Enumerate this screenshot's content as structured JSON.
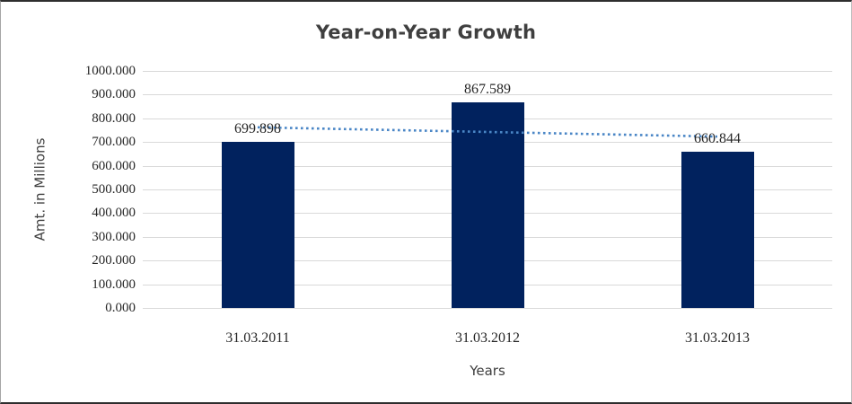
{
  "chart_data": {
    "type": "bar",
    "title": "Year-on-Year Growth",
    "xlabel": "Years",
    "ylabel": "Amt. in Millions",
    "categories": [
      "31.03.2011",
      "31.03.2012",
      "31.03.2013"
    ],
    "values": [
      699.898,
      867.589,
      660.844
    ],
    "data_labels": [
      "699.898",
      "867.589",
      "660.844"
    ],
    "ylim": [
      0,
      1000
    ],
    "ytick_step": 100,
    "ytick_labels": [
      "1000.000",
      "900.000",
      "800.000",
      "700.000",
      "600.000",
      "500.000",
      "400.000",
      "300.000",
      "200.000",
      "100.000",
      "0.000"
    ],
    "grid": "horizontal",
    "legend": "none",
    "trendline": {
      "kind": "linear",
      "line_style": "dotted",
      "start_value": 762,
      "end_value": 723
    },
    "colors": {
      "bar": "#01225e",
      "trendline": "#4a86c6",
      "gridline": "#d9d9d9",
      "title_text": "#3f3f3f",
      "tick_text": "#262626",
      "frame_border_dark": "#2e2e2e",
      "frame_border_side": "#a6a6a6"
    }
  }
}
